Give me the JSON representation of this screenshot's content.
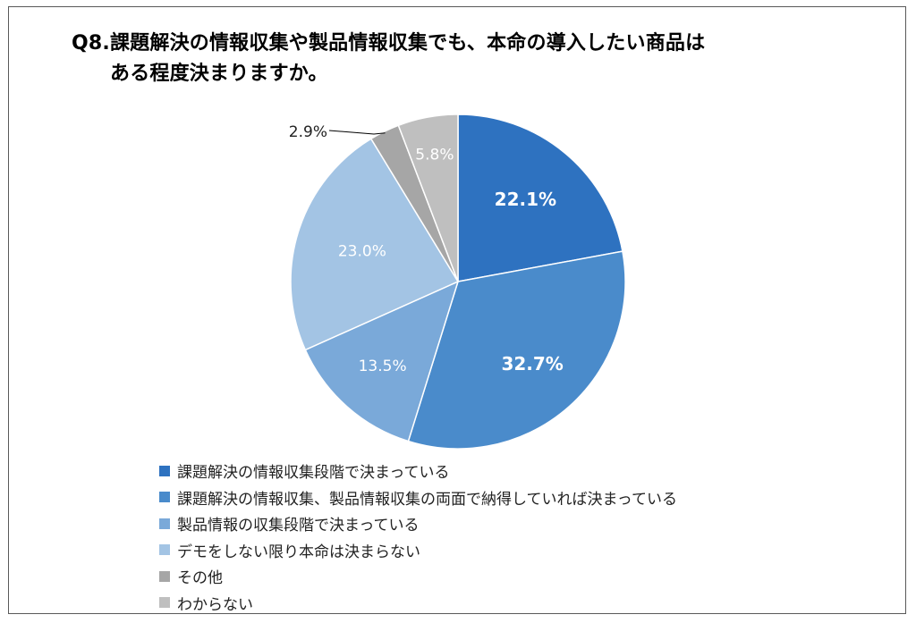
{
  "chart_data": {
    "type": "pie",
    "title_lines": [
      "Q8.課題解決の情報収集や製品情報収集でも、本命の導入したい商品は",
      "ある程度決まりますか。"
    ],
    "categories": [
      "課題解決の情報収集段階で決まっている",
      "課題解決の情報収集、製品情報収集の両面で納得していれば決まっている",
      "製品情報の収集段階で決まっている",
      "デモをしない限り本命は決まらない",
      "その他",
      "わからない"
    ],
    "values": [
      22.1,
      32.7,
      13.5,
      23.0,
      2.9,
      5.8
    ],
    "data_labels": [
      "22.1%",
      "32.7%",
      "13.5%",
      "23.0%",
      "2.9%",
      "5.8%"
    ],
    "colors": [
      "#2e72c0",
      "#4a8bcb",
      "#7aa9d9",
      "#a3c4e4",
      "#a6a6a6",
      "#bfbfbf"
    ],
    "label_colors": [
      "#ffffff",
      "#ffffff",
      "#ffffff",
      "#ffffff",
      "#222222",
      "#ffffff"
    ],
    "label_bold": [
      true,
      true,
      false,
      false,
      false,
      false
    ],
    "start_angle_deg": 0,
    "direction": "clockwise",
    "legend_position": "bottom-left"
  }
}
